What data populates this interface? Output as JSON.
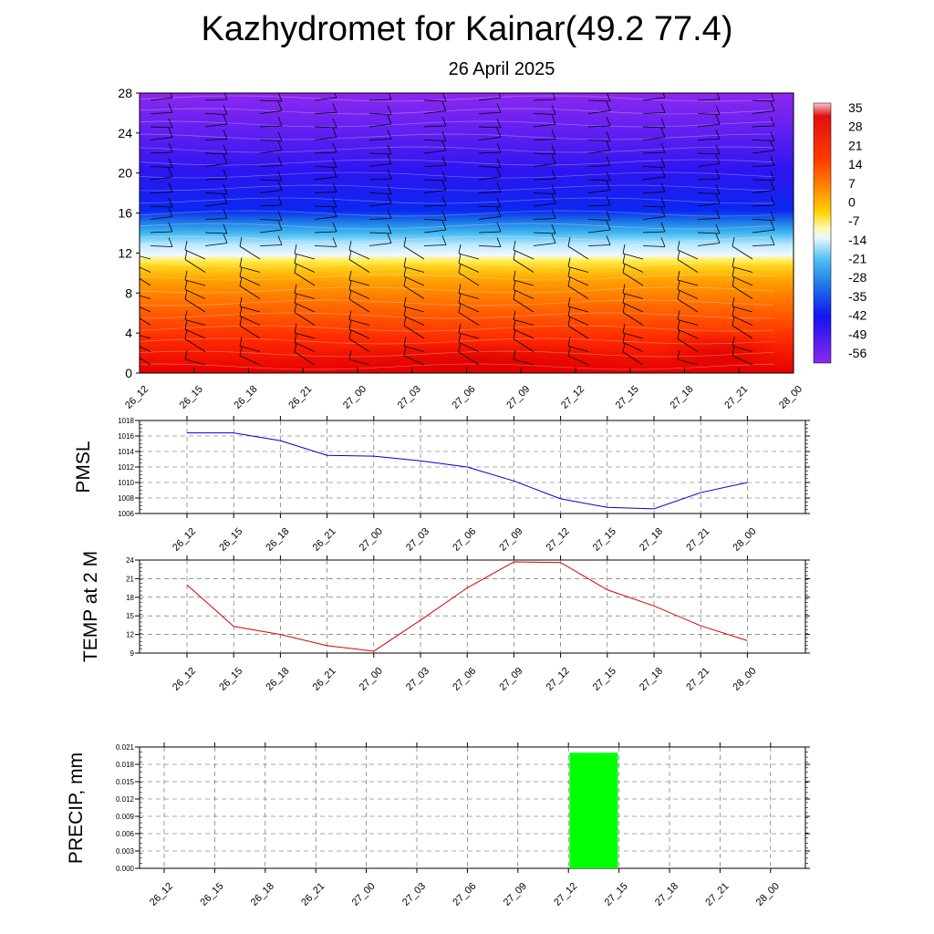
{
  "title": "Kazhydromet for Kainar(49.2 77.4)",
  "subtitle": "26 April 2025",
  "colors": {
    "pmsl_line": "#0000cc",
    "temp_line": "#dd0000",
    "precip_bar": "#00ff00",
    "grid": "#555555"
  },
  "chart_data": [
    {
      "type": "heatmap",
      "title": "",
      "x_ticks": [
        "26_12",
        "26_15",
        "26_18",
        "26_21",
        "27_00",
        "27_03",
        "27_06",
        "27_09",
        "27_12",
        "27_15",
        "27_18",
        "27_21",
        "28_00"
      ],
      "ylim": [
        0,
        28
      ],
      "y_ticks": [
        "0",
        "4",
        "8",
        "12",
        "16",
        "20",
        "24",
        "28"
      ],
      "colorbar_labels": [
        "35",
        "28",
        "21",
        "14",
        "7",
        "0",
        "-7",
        "-14",
        "-21",
        "-28",
        "-35",
        "-42",
        "-49",
        "-56"
      ],
      "colormap_range": [
        -56,
        35
      ],
      "overlay": "wind barbs"
    },
    {
      "type": "line",
      "ylabel": "PMSL",
      "x": [
        "26_12",
        "26_15",
        "26_18",
        "26_21",
        "27_00",
        "27_03",
        "27_06",
        "27_09",
        "27_12",
        "27_15",
        "27_18",
        "27_21",
        "28_00"
      ],
      "y_ticks": [
        "1006",
        "1008",
        "1010",
        "1012",
        "1014",
        "1016",
        "1018"
      ],
      "ylim": [
        1006,
        1018
      ],
      "values": [
        1016.4,
        1016.4,
        1015.4,
        1013.5,
        1013.4,
        1012.8,
        1012.0,
        1010.2,
        1007.9,
        1006.8,
        1006.6,
        1008.7,
        1010.0
      ],
      "grid": true
    },
    {
      "type": "line",
      "ylabel": "TEMP at 2 M",
      "x": [
        "26_12",
        "26_15",
        "26_18",
        "26_21",
        "27_00",
        "27_03",
        "27_06",
        "27_09",
        "27_12",
        "27_15",
        "27_18",
        "27_21",
        "28_00"
      ],
      "y_ticks": [
        "9",
        "12",
        "15",
        "18",
        "21",
        "24"
      ],
      "ylim": [
        9,
        24
      ],
      "values": [
        20.0,
        13.3,
        12.0,
        10.2,
        9.3,
        14.3,
        19.5,
        23.7,
        23.6,
        19.2,
        16.6,
        13.4,
        11.0
      ],
      "grid": true
    },
    {
      "type": "bar",
      "ylabel": "PRECIP, mm",
      "categories": [
        "26_12",
        "26_15",
        "26_18",
        "26_21",
        "27_00",
        "27_03",
        "27_06",
        "27_09",
        "27_12",
        "27_15",
        "27_18",
        "27_21",
        "28_00"
      ],
      "y_ticks": [
        "0.000",
        "0.003",
        "0.006",
        "0.009",
        "0.012",
        "0.015",
        "0.018",
        "0.021"
      ],
      "ylim": [
        0,
        0.021
      ],
      "values": [
        0,
        0,
        0,
        0,
        0,
        0,
        0,
        0,
        0.02,
        0,
        0,
        0,
        0
      ],
      "grid": true
    }
  ]
}
